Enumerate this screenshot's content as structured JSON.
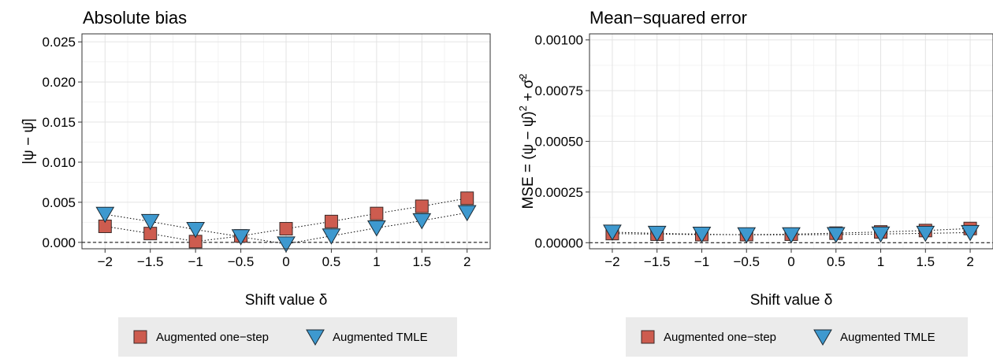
{
  "chart_data": [
    {
      "type": "scatter",
      "title": "Absolute bias",
      "xlabel": "Shift value δ",
      "ylabel": "|ψ − ψ̂|",
      "x": [
        -2,
        -1.5,
        -1,
        -0.5,
        0,
        0.5,
        1,
        1.5,
        2
      ],
      "x_tick_labels": [
        "−2",
        "−1.5",
        "−1",
        "−0.5",
        "0",
        "0.5",
        "1",
        "1.5",
        "2"
      ],
      "ylim": [
        -0.0008,
        0.026
      ],
      "y_ticks": [
        0,
        0.005,
        0.01,
        0.015,
        0.02,
        0.025
      ],
      "y_tick_labels": [
        "0.000",
        "0.005",
        "0.010",
        "0.015",
        "0.020",
        "0.025"
      ],
      "reference_line": 0,
      "grid": true,
      "series": [
        {
          "name": "Augmented one−step",
          "marker": "square",
          "color": "#CD5C4F",
          "values": [
            0.002,
            0.0011,
            0.0001,
            0.0008,
            0.0017,
            0.0026,
            0.0036,
            0.0045,
            0.0055
          ]
        },
        {
          "name": "Augmented TMLE",
          "marker": "triangle-down",
          "color": "#3E99CF",
          "values": [
            0.0035,
            0.0026,
            0.0016,
            0.0007,
            -0.0002,
            0.0008,
            0.0018,
            0.0027,
            0.0037
          ]
        }
      ]
    },
    {
      "type": "scatter",
      "title": "Mean−squared error",
      "xlabel": "Shift value δ",
      "ylabel": "MSE = (ψ − ψ̂)² + σ̂²",
      "x": [
        -2,
        -1.5,
        -1,
        -0.5,
        0,
        0.5,
        1,
        1.5,
        2
      ],
      "x_tick_labels": [
        "−2",
        "−1.5",
        "−1",
        "−0.5",
        "0",
        "0.5",
        "1",
        "1.5",
        "2"
      ],
      "ylim": [
        -3e-05,
        0.00103
      ],
      "y_ticks": [
        0,
        0.00025,
        0.0005,
        0.00075,
        0.001
      ],
      "y_tick_labels": [
        "0.00000",
        "0.00025",
        "0.00050",
        "0.00075",
        "0.00100"
      ],
      "reference_line": 0,
      "grid": true,
      "series": [
        {
          "name": "Augmented one−step",
          "marker": "square",
          "color": "#CD5C4F",
          "values": [
            4.5e-05,
            4.2e-05,
            4e-05,
            4e-05,
            4.2e-05,
            4.7e-05,
            5.3e-05,
            6e-05,
            7e-05
          ]
        },
        {
          "name": "Augmented TMLE",
          "marker": "triangle-down",
          "color": "#3E99CF",
          "values": [
            5.2e-05,
            4.6e-05,
            4.2e-05,
            3.9e-05,
            3.9e-05,
            4e-05,
            4.3e-05,
            4.6e-05,
            5e-05
          ]
        }
      ]
    }
  ]
}
